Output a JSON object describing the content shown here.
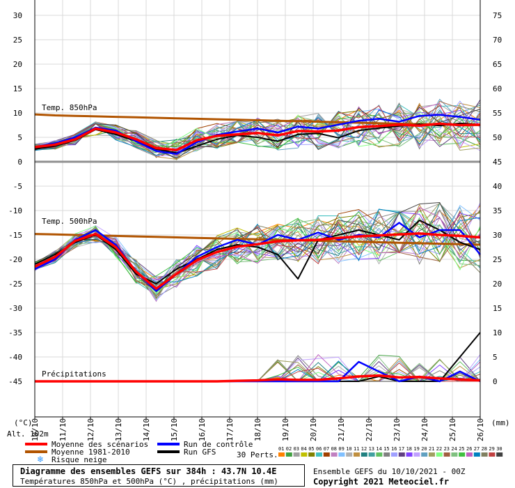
{
  "chart_data": {
    "type": "line",
    "title": "Diagramme des ensembles GEFS sur 384h : 43.7N 10.4E",
    "subtitle": "Températures 850hPa et 500hPa (°C) , précipitations (mm)",
    "run_info": "Ensemble GEFS du 10/10/2021 - 00Z",
    "copyright": "Copyright 2021 Meteociel.fr",
    "left_axis_unit": "(°C)",
    "right_axis_unit": "(mm)",
    "altitude": "Alt. 102m",
    "left_axis": {
      "ticks": [
        "30",
        "25",
        "20",
        "15",
        "10",
        "5",
        "0",
        "-5",
        "-10",
        "-15",
        "-20",
        "-25",
        "-30",
        "-35",
        "-40",
        "-45"
      ],
      "ylim": [
        -45,
        30
      ]
    },
    "right_axis": {
      "ticks": [
        "75",
        "70",
        "65",
        "60",
        "55",
        "50",
        "45",
        "40",
        "35",
        "30",
        "25",
        "20",
        "15",
        "10",
        "5",
        "0"
      ]
    },
    "x_ticks": [
      "10/10",
      "11/10",
      "12/10",
      "13/10",
      "14/10",
      "15/10",
      "16/10",
      "17/10",
      "18/10",
      "19/10",
      "20/10",
      "21/10",
      "22/10",
      "23/10",
      "24/10",
      "25/10",
      "26/10"
    ],
    "panel_labels": {
      "t850": "Temp. 850hPa",
      "t500": "Temp. 500hPa",
      "precip": "Précipitations"
    },
    "grid": true,
    "series": [
      {
        "name": "Moyenne des scénarios",
        "panel": "t850",
        "color": "#ff0000",
        "values": [
          3,
          3.5,
          4.6,
          6.8,
          6,
          4.6,
          2.8,
          2.4,
          4.4,
          5.3,
          5.6,
          5.9,
          5.4,
          6.3,
          6.2,
          6.4,
          7.1,
          7.3,
          7.6,
          7.4,
          7.8,
          7.5,
          7.6
        ]
      },
      {
        "name": "Moyenne 1981-2010",
        "panel": "t850",
        "color": "#b15400",
        "values": [
          9.7,
          9.5,
          9.4,
          9.3,
          9.2,
          9.1,
          9,
          8.9,
          8.8,
          8.7,
          8.6,
          8.5,
          8.4,
          8.3,
          8.2,
          8.1,
          8,
          7.9,
          7.8,
          7.7,
          7.7,
          7.6,
          7.5
        ]
      },
      {
        "name": "Run de contrôle",
        "panel": "t850",
        "color": "#0000ff",
        "values": [
          3,
          3.8,
          5,
          7,
          6.4,
          4.2,
          2.2,
          1.6,
          4,
          5.5,
          6.2,
          6.8,
          6,
          7.2,
          6.8,
          7.6,
          8.4,
          8.8,
          8.2,
          9.4,
          9.6,
          9.2,
          8.6
        ]
      },
      {
        "name": "Run GFS",
        "panel": "t850",
        "color": "#000000",
        "values": [
          2.6,
          3.2,
          4.4,
          6.6,
          5.6,
          4.2,
          2.6,
          1.8,
          3.2,
          4.6,
          5.4,
          5,
          4.2,
          5.6,
          5.8,
          4.9,
          6.4,
          6.9,
          7.3,
          7.7,
          7.4,
          7.9,
          7.6
        ]
      },
      {
        "name": "Moyenne des scénarios",
        "panel": "t500",
        "color": "#ff0000",
        "values": [
          -21.5,
          -19.5,
          -16.2,
          -14.8,
          -17.5,
          -22.5,
          -26,
          -23,
          -20.2,
          -18.5,
          -17.4,
          -16.9,
          -16.3,
          -16.1,
          -16,
          -15.6,
          -15.3,
          -15.1,
          -14.9,
          -14.7,
          -15,
          -15.2,
          -15.5
        ]
      },
      {
        "name": "Moyenne 1981-2010",
        "panel": "t500",
        "color": "#b15400",
        "values": [
          -14.8,
          -14.9,
          -15,
          -15.1,
          -15.2,
          -15.3,
          -15.4,
          -15.5,
          -15.6,
          -15.7,
          -15.8,
          -15.9,
          -16,
          -16.1,
          -16.2,
          -16.3,
          -16.4,
          -16.5,
          -16.6,
          -16.7,
          -16.8,
          -16.9,
          -17
        ]
      },
      {
        "name": "Run de contrôle",
        "panel": "t500",
        "color": "#0000ff",
        "values": [
          -22,
          -20,
          -16,
          -14,
          -17,
          -22.5,
          -26.5,
          -23,
          -19.5,
          -17.5,
          -16,
          -17,
          -15,
          -16,
          -14.5,
          -16,
          -15,
          -15.5,
          -12.5,
          -15.5,
          -14,
          -14,
          -19
        ]
      },
      {
        "name": "Run GFS",
        "panel": "t500",
        "color": "#000000",
        "values": [
          -21,
          -19,
          -16.5,
          -15,
          -18,
          -23,
          -25,
          -22,
          -20,
          -18,
          -17,
          -17.5,
          -19,
          -24,
          -16,
          -15,
          -14,
          -15,
          -16,
          -12,
          -14,
          -16.5,
          -18
        ]
      },
      {
        "name": "Moyenne des scénarios",
        "panel": "precip",
        "color": "#ff0000",
        "values": [
          0,
          0,
          0,
          0,
          0,
          0,
          0,
          0,
          0,
          0,
          0.1,
          0.2,
          0.4,
          0.3,
          0.3,
          0.6,
          1,
          1.2,
          0.8,
          0.9,
          0.6,
          0.4,
          0.2
        ]
      },
      {
        "name": "Run de contrôle",
        "panel": "precip",
        "color": "#0000ff",
        "values": [
          0,
          0,
          0,
          0,
          0,
          0,
          0,
          0,
          0,
          0,
          0,
          0,
          0,
          0,
          0,
          0,
          4,
          2,
          0,
          1,
          0,
          2,
          0
        ]
      },
      {
        "name": "Run GFS",
        "panel": "precip",
        "color": "#000000",
        "values": [
          0,
          0,
          0,
          0,
          0,
          0,
          0,
          0,
          0,
          0,
          0,
          0,
          0,
          0,
          0,
          0,
          0,
          1,
          0,
          0,
          0,
          5,
          10
        ]
      }
    ],
    "legend": [
      {
        "label": "Moyenne des scénarios",
        "color": "#ff0000"
      },
      {
        "label": "Moyenne 1981-2010",
        "color": "#b15400"
      },
      {
        "label": "Risque neige",
        "icon": "snowflake-icon",
        "color": "#3399ff"
      },
      {
        "label": "Run de contrôle",
        "color": "#0000ff"
      },
      {
        "label": "Run GFS",
        "color": "#000000"
      }
    ],
    "perturbations": {
      "label": "30 Perts.",
      "ids": [
        "01",
        "02",
        "03",
        "04",
        "05",
        "06",
        "07",
        "08",
        "09",
        "10",
        "11",
        "12",
        "13",
        "14",
        "15",
        "16",
        "17",
        "18",
        "19",
        "20",
        "21",
        "22",
        "23",
        "24",
        "25",
        "26",
        "27",
        "28",
        "29",
        "30"
      ],
      "colors": [
        "#ff8000",
        "#40a040",
        "#a0a0a0",
        "#c0c000",
        "#808000",
        "#40c0c0",
        "#a04000",
        "#c080c0",
        "#80c0ff",
        "#b0b0b0",
        "#c09040",
        "#208080",
        "#40a0a0",
        "#60c060",
        "#808080",
        "#a0a0ff",
        "#604080",
        "#8040ff",
        "#c0a0ff",
        "#60a0c0",
        "#a0a060",
        "#80ff80",
        "#a06040",
        "#80c080",
        "#40c040",
        "#c060c0",
        "#0080c0",
        "#808060",
        "#c04040",
        "#404040"
      ]
    }
  }
}
